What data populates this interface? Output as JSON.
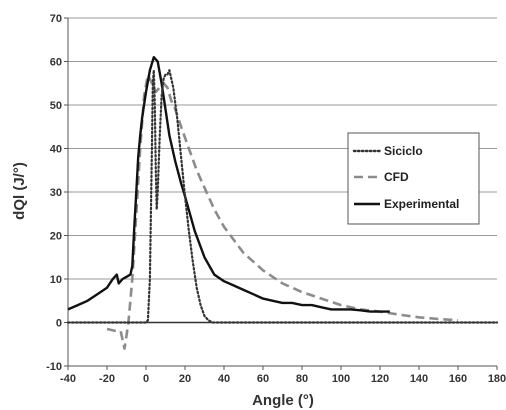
{
  "chart_data": {
    "type": "line",
    "title": "",
    "xlabel": "Angle (°)",
    "ylabel": "dQl (J/°)",
    "xlim": [
      -40,
      180
    ],
    "ylim": [
      -10,
      70
    ],
    "xticks": [
      -40,
      -20,
      0,
      20,
      40,
      60,
      80,
      100,
      120,
      140,
      160,
      180
    ],
    "yticks": [
      -10,
      0,
      10,
      20,
      30,
      40,
      50,
      60,
      70
    ],
    "grid": "horizontal",
    "legend_position": "right",
    "series": [
      {
        "name": "Siciclo",
        "style": "dotted",
        "color": "#333333",
        "points": [
          [
            -40,
            0
          ],
          [
            0,
            0
          ],
          [
            1,
            0.5
          ],
          [
            2,
            10
          ],
          [
            3,
            40
          ],
          [
            3.5,
            55
          ],
          [
            4,
            58
          ],
          [
            4.5,
            50
          ],
          [
            5,
            35
          ],
          [
            5.5,
            26
          ],
          [
            6,
            30
          ],
          [
            7,
            42
          ],
          [
            8,
            52
          ],
          [
            9,
            56
          ],
          [
            10,
            57
          ],
          [
            11,
            57
          ],
          [
            12,
            58
          ],
          [
            13,
            56
          ],
          [
            14,
            54
          ],
          [
            16,
            47
          ],
          [
            18,
            38
          ],
          [
            20,
            29
          ],
          [
            22,
            21
          ],
          [
            24,
            14
          ],
          [
            26,
            8
          ],
          [
            28,
            4
          ],
          [
            30,
            1.5
          ],
          [
            32,
            0.5
          ],
          [
            34,
            0
          ],
          [
            180,
            0
          ]
        ]
      },
      {
        "name": "CFD",
        "style": "dashed",
        "color": "#8c8c8c",
        "points": [
          [
            -20,
            -1.5
          ],
          [
            -15,
            -2
          ],
          [
            -13,
            -2
          ],
          [
            -12,
            -4
          ],
          [
            -11,
            -6
          ],
          [
            -10,
            -3
          ],
          [
            -9,
            0
          ],
          [
            -7,
            10
          ],
          [
            -5,
            25
          ],
          [
            -3,
            40
          ],
          [
            -1,
            52
          ],
          [
            1,
            57
          ],
          [
            3,
            55
          ],
          [
            5,
            53
          ],
          [
            7,
            54
          ],
          [
            9,
            55
          ],
          [
            11,
            54
          ],
          [
            13,
            51
          ],
          [
            15,
            49
          ],
          [
            18,
            45
          ],
          [
            22,
            40
          ],
          [
            26,
            35
          ],
          [
            30,
            31
          ],
          [
            35,
            26
          ],
          [
            40,
            22
          ],
          [
            50,
            16
          ],
          [
            60,
            12
          ],
          [
            70,
            9
          ],
          [
            80,
            7
          ],
          [
            90,
            5.5
          ],
          [
            100,
            4
          ],
          [
            110,
            3
          ],
          [
            120,
            2.5
          ],
          [
            130,
            1.8
          ],
          [
            140,
            1.2
          ],
          [
            150,
            0.8
          ],
          [
            160,
            0.5
          ]
        ]
      },
      {
        "name": "Experimental",
        "style": "solid",
        "color": "#111111",
        "points": [
          [
            -40,
            3
          ],
          [
            -35,
            4
          ],
          [
            -30,
            5
          ],
          [
            -25,
            6.5
          ],
          [
            -20,
            8
          ],
          [
            -17,
            10
          ],
          [
            -15,
            11
          ],
          [
            -14,
            9
          ],
          [
            -12,
            10
          ],
          [
            -10,
            10.5
          ],
          [
            -8,
            11
          ],
          [
            -7,
            13
          ],
          [
            -6,
            22
          ],
          [
            -5,
            30
          ],
          [
            -4,
            38
          ],
          [
            -3,
            43
          ],
          [
            -2,
            47
          ],
          [
            0,
            53
          ],
          [
            2,
            58
          ],
          [
            4,
            61
          ],
          [
            6,
            60
          ],
          [
            8,
            55
          ],
          [
            10,
            49
          ],
          [
            12,
            43
          ],
          [
            15,
            37
          ],
          [
            18,
            32
          ],
          [
            20,
            29
          ],
          [
            25,
            21
          ],
          [
            30,
            15
          ],
          [
            35,
            11
          ],
          [
            40,
            9.5
          ],
          [
            45,
            8.5
          ],
          [
            50,
            7.5
          ],
          [
            55,
            6.5
          ],
          [
            60,
            5.5
          ],
          [
            65,
            5
          ],
          [
            70,
            4.5
          ],
          [
            75,
            4.5
          ],
          [
            80,
            4
          ],
          [
            85,
            4
          ],
          [
            90,
            3.5
          ],
          [
            95,
            3
          ],
          [
            100,
            3
          ],
          [
            105,
            3
          ],
          [
            110,
            2.8
          ],
          [
            115,
            2.5
          ],
          [
            120,
            2.5
          ],
          [
            125,
            2.5
          ]
        ]
      }
    ]
  }
}
